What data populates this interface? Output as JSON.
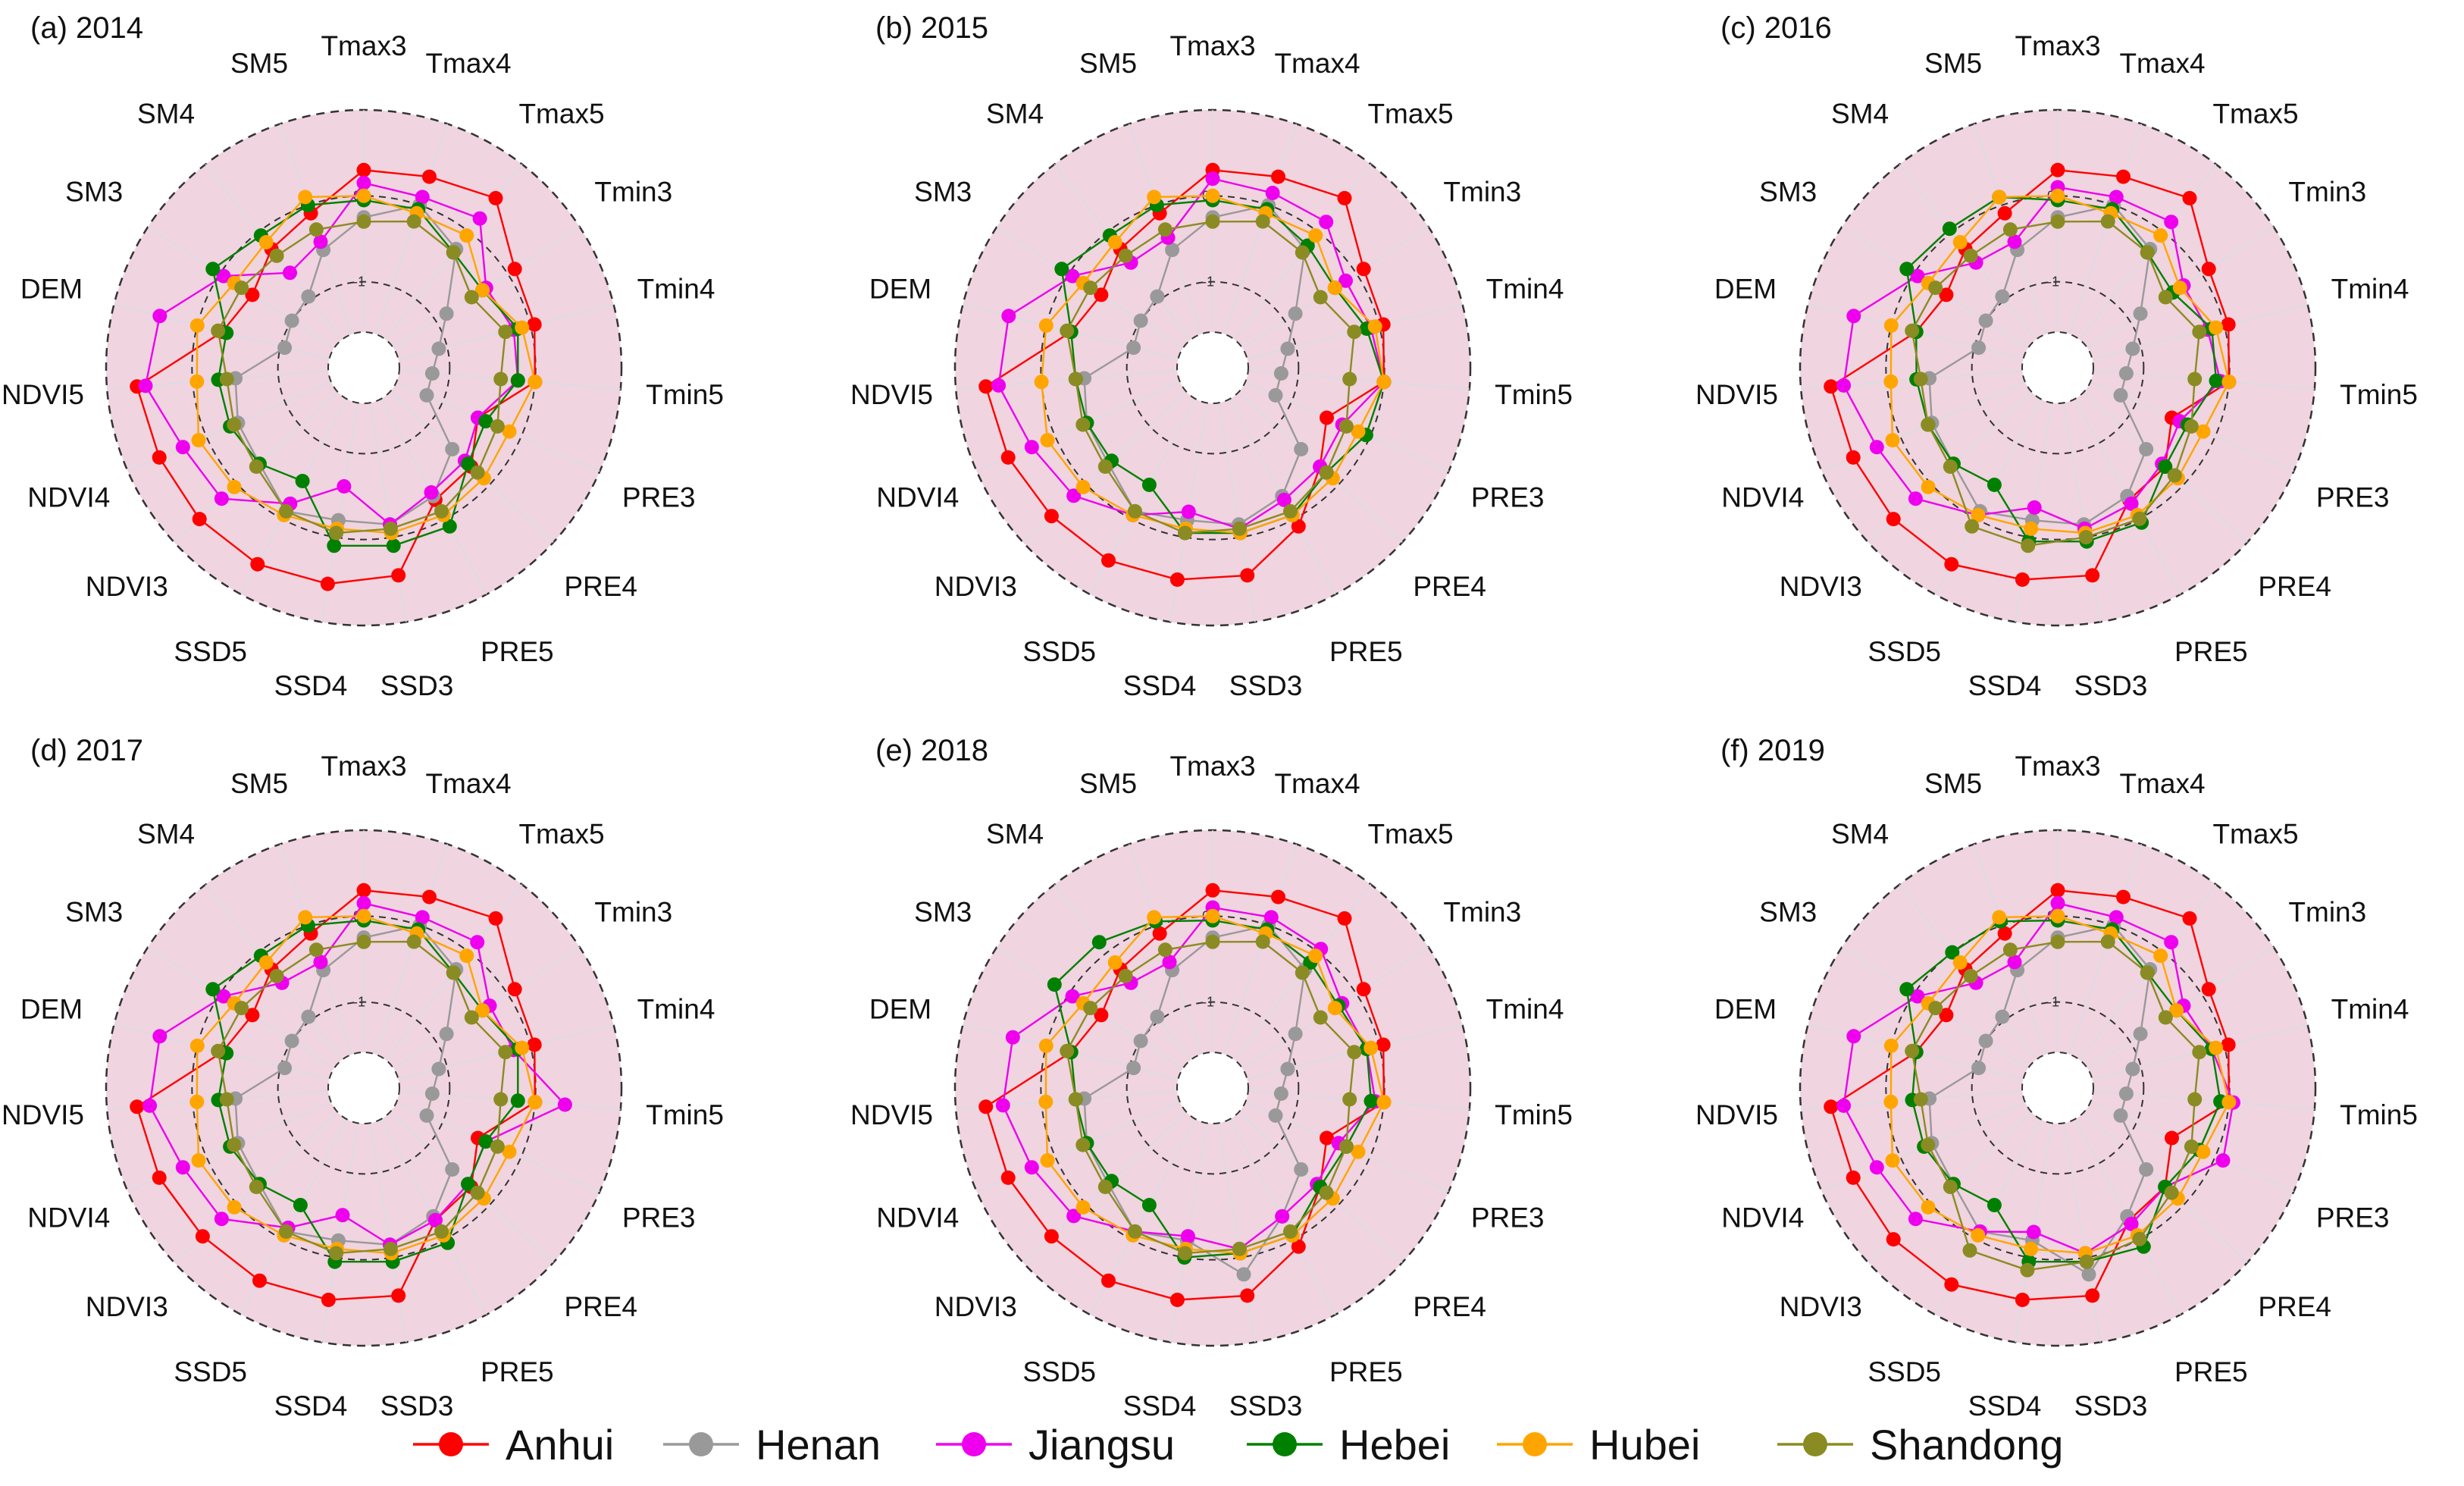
{
  "chart_data": {
    "type": "radar",
    "title": "",
    "variables": [
      "Tmax3",
      "Tmax4",
      "Tmax5",
      "Tmin3",
      "Tmin4",
      "Tmin5",
      "PRE3",
      "PRE4",
      "PRE5",
      "SSD3",
      "SSD4",
      "SSD5",
      "NDVI3",
      "NDVI4",
      "NDVI5",
      "DEM",
      "SM3",
      "SM4",
      "SM5"
    ],
    "radial_range": [
      -2,
      1
    ],
    "radial_ticks": [
      "-1",
      "0"
    ],
    "legend_position": "bottom",
    "series_styles": [
      {
        "name": "Anhui",
        "color": "#ff0000"
      },
      {
        "name": "Henan",
        "color": "#999999"
      },
      {
        "name": "Jiangsu",
        "color": "#ee00ee"
      },
      {
        "name": "Hebei",
        "color": "#008000"
      },
      {
        "name": "Hubei",
        "color": "#ffa500"
      },
      {
        "name": "Shandong",
        "color": "#8b8b23"
      }
    ],
    "panels": [
      {
        "title": "(a) 2014",
        "series": [
          {
            "name": "Anhui",
            "values": [
              0.3,
              0.35,
              0.5,
              0.1,
              0.05,
              0.0,
              -0.55,
              -0.3,
              -0.25,
              0.45,
              0.55,
              0.6,
              0.6,
              0.6,
              0.65,
              -0.3,
              -0.45,
              -0.25,
              -0.1
            ]
          },
          {
            "name": "Henan",
            "values": [
              -0.25,
              0.0,
              -0.25,
              -0.85,
              -1.1,
              -1.2,
              -1.2,
              -0.6,
              -0.3,
              -0.15,
              -0.2,
              -0.1,
              -0.35,
              -0.4,
              -0.5,
              -1.05,
              -1.0,
              -0.95,
              -0.55
            ]
          },
          {
            "name": "Jiangsu",
            "values": [
              0.15,
              0.1,
              0.2,
              -0.3,
              -0.2,
              -0.2,
              -0.55,
              -0.4,
              -0.35,
              -0.15,
              -0.6,
              -0.2,
              0.25,
              0.3,
              0.55,
              0.45,
              -0.05,
              -0.6,
              -0.45
            ]
          },
          {
            "name": "Hebei",
            "values": [
              -0.05,
              -0.05,
              -0.3,
              -0.35,
              -0.15,
              -0.2,
              -0.45,
              -0.35,
              0.1,
              0.1,
              0.1,
              -0.5,
              -0.35,
              -0.3,
              -0.3,
              -0.35,
              0.1,
              -0.05,
              0.0
            ]
          },
          {
            "name": "Hubei",
            "values": [
              0.0,
              -0.1,
              -0.05,
              -0.35,
              -0.1,
              0.0,
              -0.15,
              -0.1,
              -0.05,
              -0.05,
              -0.1,
              -0.05,
              0.05,
              0.1,
              -0.05,
              0.0,
              -0.2,
              -0.15,
              0.1
            ]
          },
          {
            "name": "Shandong",
            "values": [
              -0.3,
              -0.2,
              -0.3,
              -0.5,
              -0.3,
              -0.4,
              -0.3,
              -0.2,
              -0.1,
              -0.1,
              -0.05,
              -0.1,
              -0.3,
              -0.35,
              -0.4,
              -0.25,
              -0.3,
              -0.35,
              -0.3
            ]
          }
        ]
      },
      {
        "title": "(b) 2015",
        "series": [
          {
            "name": "Anhui",
            "values": [
              0.3,
              0.35,
              0.5,
              0.1,
              0.05,
              0.0,
              -0.55,
              -0.3,
              0.1,
              0.45,
              0.5,
              0.55,
              0.55,
              0.6,
              0.65,
              -0.3,
              -0.45,
              -0.25,
              -0.1
            ]
          },
          {
            "name": "Henan",
            "values": [
              -0.25,
              0.0,
              -0.25,
              -0.85,
              -1.1,
              -1.2,
              -1.2,
              -0.6,
              -0.3,
              -0.15,
              -0.2,
              -0.1,
              -0.35,
              -0.4,
              -0.5,
              -1.05,
              -1.0,
              -0.95,
              -0.55
            ]
          },
          {
            "name": "Jiangsu",
            "values": [
              0.2,
              0.15,
              0.15,
              -0.15,
              -0.1,
              0.0,
              -0.35,
              -0.3,
              -0.25,
              -0.1,
              -0.3,
              -0.05,
              0.2,
              0.3,
              0.5,
              0.45,
              -0.05,
              -0.45,
              -0.4
            ]
          },
          {
            "name": "Hebei",
            "values": [
              -0.05,
              -0.05,
              -0.2,
              -0.3,
              -0.15,
              0.0,
              -0.05,
              -0.2,
              -0.05,
              -0.05,
              -0.05,
              -0.45,
              -0.4,
              -0.4,
              -0.4,
              -0.3,
              0.1,
              -0.05,
              0.0
            ]
          },
          {
            "name": "Hubei",
            "values": [
              0.0,
              -0.1,
              -0.05,
              -0.3,
              -0.05,
              0.0,
              -0.15,
              -0.1,
              -0.05,
              -0.05,
              -0.1,
              -0.05,
              0.05,
              0.1,
              0.0,
              0.0,
              -0.2,
              -0.15,
              0.1
            ]
          },
          {
            "name": "Shandong",
            "values": [
              -0.3,
              -0.2,
              -0.3,
              -0.5,
              -0.3,
              -0.4,
              -0.3,
              -0.2,
              -0.1,
              -0.1,
              -0.05,
              -0.1,
              -0.3,
              -0.35,
              -0.4,
              -0.25,
              -0.3,
              -0.35,
              -0.3
            ]
          }
        ]
      },
      {
        "title": "(c) 2016",
        "series": [
          {
            "name": "Anhui",
            "values": [
              0.3,
              0.35,
              0.5,
              0.1,
              0.05,
              0.0,
              -0.55,
              -0.3,
              -0.25,
              0.45,
              0.5,
              0.6,
              0.6,
              0.6,
              0.65,
              -0.3,
              -0.45,
              -0.25,
              -0.1
            ]
          },
          {
            "name": "Henan",
            "values": [
              -0.25,
              0.0,
              -0.25,
              -0.85,
              -1.1,
              -1.2,
              -1.2,
              -0.6,
              -0.3,
              -0.15,
              -0.2,
              -0.1,
              -0.35,
              -0.4,
              -0.5,
              -1.05,
              -1.0,
              -0.95,
              -0.55
            ]
          },
          {
            "name": "Jiangsu",
            "values": [
              0.1,
              0.1,
              0.15,
              -0.25,
              -0.2,
              -0.1,
              -0.45,
              -0.35,
              -0.2,
              -0.1,
              -0.35,
              -0.05,
              0.25,
              0.3,
              0.5,
              0.45,
              -0.05,
              -0.45,
              -0.45
            ]
          },
          {
            "name": "Hebei",
            "values": [
              -0.05,
              -0.05,
              -0.3,
              -0.4,
              -0.15,
              -0.15,
              -0.35,
              -0.3,
              0.05,
              0.05,
              0.05,
              -0.45,
              -0.35,
              -0.35,
              -0.35,
              -0.3,
              0.1,
              0.05,
              0.1
            ]
          },
          {
            "name": "Hubei",
            "values": [
              0.0,
              -0.1,
              -0.05,
              -0.3,
              -0.1,
              0.0,
              -0.15,
              -0.1,
              -0.05,
              -0.05,
              -0.1,
              -0.05,
              0.05,
              0.1,
              -0.05,
              0.0,
              -0.2,
              -0.15,
              0.1
            ]
          },
          {
            "name": "Shandong",
            "values": [
              -0.3,
              -0.2,
              -0.3,
              -0.5,
              -0.3,
              -0.4,
              -0.3,
              -0.15,
              0.0,
              0.0,
              0.1,
              0.1,
              -0.3,
              -0.35,
              -0.4,
              -0.25,
              -0.3,
              -0.35,
              -0.3
            ]
          }
        ]
      },
      {
        "title": "(d) 2017",
        "series": [
          {
            "name": "Anhui",
            "values": [
              0.3,
              0.35,
              0.5,
              0.1,
              0.05,
              0.0,
              -0.55,
              -0.3,
              -0.25,
              0.45,
              0.5,
              0.55,
              0.55,
              0.6,
              0.65,
              -0.3,
              -0.45,
              -0.25,
              -0.1
            ]
          },
          {
            "name": "Henan",
            "values": [
              -0.25,
              0.0,
              -0.25,
              -0.85,
              -1.1,
              -1.2,
              -1.2,
              -0.6,
              -0.3,
              -0.15,
              -0.2,
              -0.1,
              -0.35,
              -0.4,
              -0.5,
              -1.05,
              -1.0,
              -0.95,
              -0.55
            ]
          },
          {
            "name": "Jiangsu",
            "values": [
              0.15,
              0.1,
              0.15,
              -0.25,
              -0.2,
              0.35,
              -0.45,
              -0.35,
              -0.25,
              -0.15,
              -0.5,
              -0.15,
              0.25,
              0.3,
              0.5,
              0.45,
              -0.05,
              -0.45,
              -0.45
            ]
          },
          {
            "name": "Hebei",
            "values": [
              -0.05,
              -0.05,
              -0.3,
              -0.35,
              -0.15,
              -0.2,
              -0.45,
              -0.35,
              0.05,
              0.05,
              0.05,
              -0.45,
              -0.35,
              -0.3,
              -0.3,
              -0.35,
              0.1,
              -0.05,
              0.0
            ]
          },
          {
            "name": "Hubei",
            "values": [
              0.0,
              -0.1,
              -0.05,
              -0.35,
              -0.1,
              0.0,
              -0.15,
              -0.1,
              -0.05,
              -0.05,
              -0.1,
              -0.05,
              0.05,
              0.1,
              -0.05,
              0.0,
              -0.2,
              -0.15,
              0.1
            ]
          },
          {
            "name": "Shandong",
            "values": [
              -0.3,
              -0.2,
              -0.3,
              -0.5,
              -0.3,
              -0.4,
              -0.3,
              -0.2,
              -0.1,
              -0.1,
              -0.05,
              -0.1,
              -0.3,
              -0.35,
              -0.4,
              -0.25,
              -0.3,
              -0.35,
              -0.3
            ]
          }
        ]
      },
      {
        "title": "(e) 2018",
        "series": [
          {
            "name": "Anhui",
            "values": [
              0.3,
              0.35,
              0.5,
              0.1,
              0.05,
              0.0,
              -0.55,
              -0.3,
              0.1,
              0.45,
              0.5,
              0.55,
              0.55,
              0.6,
              0.65,
              -0.3,
              -0.45,
              -0.25,
              -0.1
            ]
          },
          {
            "name": "Henan",
            "values": [
              -0.25,
              0.0,
              -0.25,
              -0.85,
              -1.1,
              -1.2,
              -1.2,
              -0.6,
              -0.3,
              0.2,
              -0.2,
              -0.1,
              -0.35,
              -0.4,
              -0.5,
              -1.05,
              -1.0,
              -0.95,
              -0.55
            ]
          },
          {
            "name": "Jiangsu",
            "values": [
              0.1,
              0.1,
              0.05,
              -0.2,
              -0.15,
              -0.1,
              -0.4,
              -0.35,
              -0.3,
              -0.1,
              -0.25,
              -0.1,
              0.2,
              0.3,
              0.45,
              0.4,
              -0.05,
              -0.45,
              -0.45
            ]
          },
          {
            "name": "Hebei",
            "values": [
              -0.05,
              -0.05,
              -0.15,
              -0.25,
              -0.15,
              -0.15,
              -0.3,
              -0.3,
              -0.05,
              -0.05,
              0.0,
              -0.45,
              -0.4,
              -0.4,
              -0.4,
              -0.3,
              0.2,
              0.15,
              0.05
            ]
          },
          {
            "name": "Hubei",
            "values": [
              0.0,
              -0.1,
              -0.05,
              -0.3,
              -0.1,
              0.0,
              -0.15,
              -0.1,
              -0.05,
              -0.05,
              -0.1,
              -0.05,
              0.05,
              0.1,
              -0.05,
              0.0,
              -0.2,
              -0.15,
              0.1
            ]
          },
          {
            "name": "Shandong",
            "values": [
              -0.3,
              -0.2,
              -0.3,
              -0.5,
              -0.3,
              -0.4,
              -0.3,
              -0.2,
              -0.1,
              -0.1,
              -0.05,
              -0.1,
              -0.3,
              -0.35,
              -0.4,
              -0.25,
              -0.3,
              -0.35,
              -0.3
            ]
          }
        ]
      },
      {
        "title": "(f) 2019",
        "series": [
          {
            "name": "Anhui",
            "values": [
              0.3,
              0.35,
              0.5,
              0.1,
              0.05,
              0.0,
              -0.55,
              -0.3,
              -0.25,
              0.45,
              0.5,
              0.6,
              0.6,
              0.6,
              0.65,
              -0.3,
              -0.45,
              -0.25,
              -0.1
            ]
          },
          {
            "name": "Henan",
            "values": [
              -0.25,
              0.0,
              -0.25,
              -0.85,
              -1.1,
              -1.2,
              -1.2,
              -0.6,
              -0.3,
              0.2,
              -0.2,
              -0.1,
              -0.35,
              -0.4,
              -0.5,
              -1.05,
              -1.0,
              -0.95,
              -0.55
            ]
          },
          {
            "name": "Jiangsu",
            "values": [
              0.15,
              0.1,
              0.15,
              -0.25,
              -0.15,
              0.05,
              0.1,
              -0.3,
              -0.2,
              -0.05,
              -0.3,
              -0.1,
              0.25,
              0.3,
              0.5,
              0.45,
              -0.05,
              -0.45,
              -0.45
            ]
          },
          {
            "name": "Hebei",
            "values": [
              -0.05,
              -0.05,
              -0.3,
              -0.35,
              -0.15,
              -0.1,
              -0.2,
              -0.3,
              0.1,
              0.05,
              0.05,
              -0.45,
              -0.35,
              -0.3,
              -0.3,
              -0.3,
              0.1,
              0.0,
              0.05
            ]
          },
          {
            "name": "Hubei",
            "values": [
              0.0,
              -0.1,
              -0.05,
              -0.35,
              -0.1,
              0.0,
              -0.15,
              -0.1,
              -0.05,
              -0.05,
              -0.1,
              -0.05,
              0.05,
              0.1,
              -0.05,
              0.0,
              -0.2,
              -0.15,
              0.1
            ]
          },
          {
            "name": "Shandong",
            "values": [
              -0.3,
              -0.2,
              -0.3,
              -0.5,
              -0.3,
              -0.4,
              -0.3,
              -0.2,
              0.0,
              0.05,
              0.15,
              0.15,
              -0.3,
              -0.35,
              -0.4,
              -0.25,
              -0.3,
              -0.35,
              -0.3
            ]
          }
        ]
      }
    ]
  }
}
